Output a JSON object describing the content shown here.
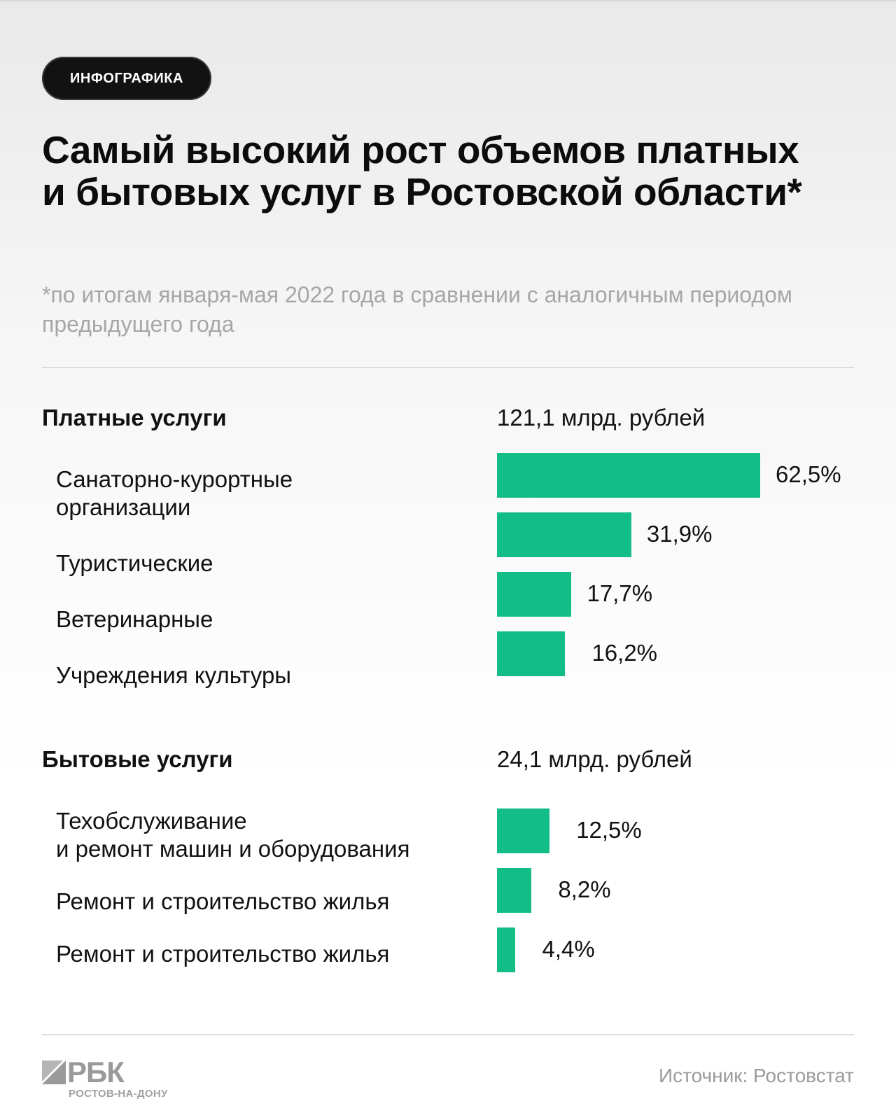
{
  "badge": "ИНФОГРАФИКА",
  "title": "Самый высокий рост объемов платных и бытовых услуг в Ростовской области*",
  "subtitle": "*по итогам января-мая 2022 года в сравнении с аналогичным периодом предыдущего года",
  "colors": {
    "bar": "#12bd88",
    "title": "#0c0c0c",
    "muted": "#a6a6a6"
  },
  "chart_data": {
    "type": "bar",
    "orientation": "horizontal",
    "title": "Самый высокий рост объемов платных и бытовых услуг в Ростовской области*",
    "unit": "%",
    "groups": [
      {
        "name": "Платные услуги",
        "total": "121,1 млрд. рублей",
        "categories": [
          "Санаторно-курортные организации",
          "Туристические",
          "Ветеринарные",
          "Учреждения культуры"
        ],
        "values": [
          62.5,
          31.9,
          17.7,
          16.2
        ],
        "labels": [
          "62,5%",
          "31,9%",
          "17,7%",
          "16,2%"
        ]
      },
      {
        "name": "Бытовые услуги",
        "total": "24,1 млрд. рублей",
        "categories": [
          "Техобслуживание и ремонт машин и оборудования",
          "Ремонт и строительство жилья",
          "Ремонт и строительство жилья"
        ],
        "values": [
          12.5,
          8.2,
          4.4
        ],
        "labels": [
          "12,5%",
          "8,2%",
          "4,4%"
        ]
      }
    ]
  },
  "labels": {
    "paid": [
      "Санаторно-курортные",
      "организации",
      "Туристические",
      "Ветеринарные",
      "Учреждения культуры"
    ],
    "household": [
      "Техобслуживание",
      "и ремонт машин и оборудования",
      "Ремонт и строительство жилья",
      "Ремонт и строительство жилья"
    ]
  },
  "footer": {
    "logo": "РБК",
    "logo_sub": "РОСТОВ-НА-ДОНУ",
    "source": "Источник:  Ростовстат"
  }
}
